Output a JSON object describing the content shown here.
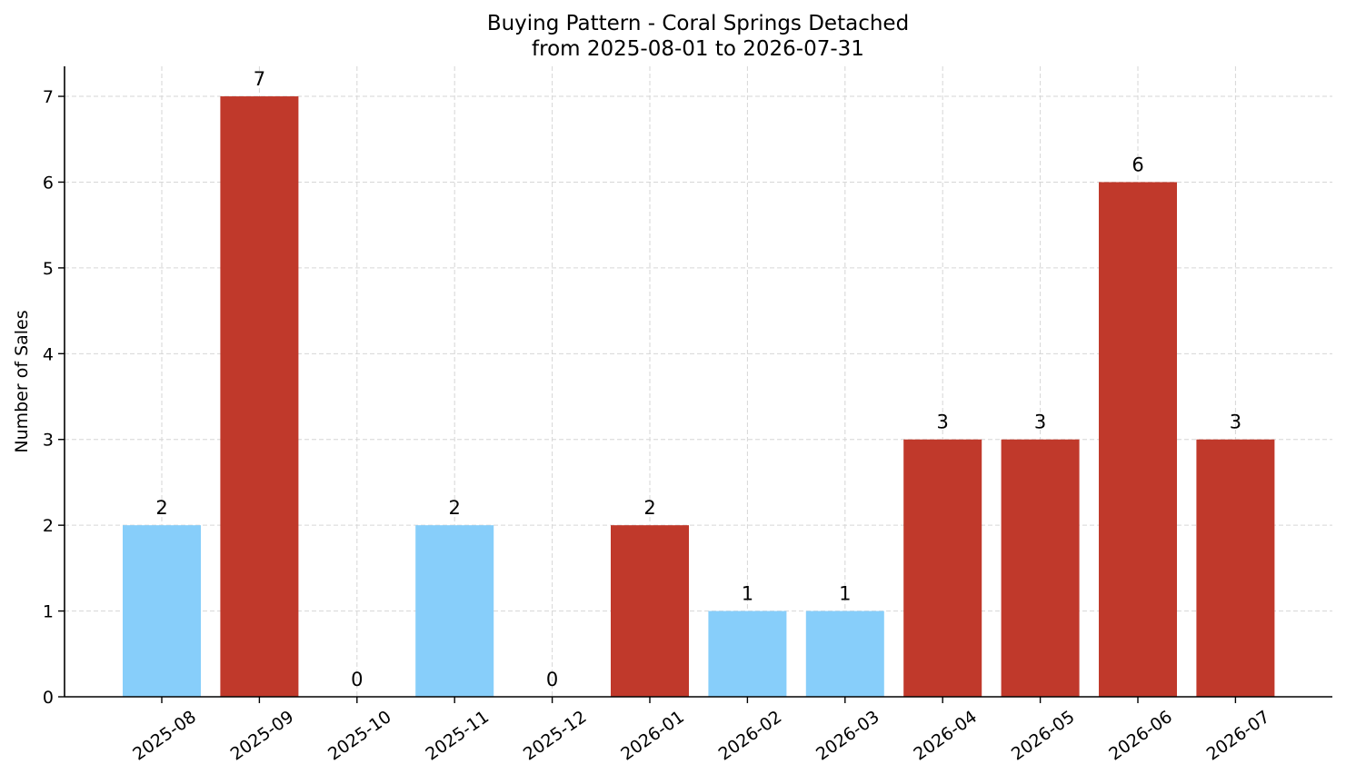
{
  "chart_data": {
    "type": "bar",
    "title": "Buying Pattern - Coral Springs Detached",
    "subtitle": "from 2025-08-01 to 2026-07-31",
    "xlabel": "",
    "ylabel": "Number of Sales",
    "categories": [
      "2025-08",
      "2025-09",
      "2025-10",
      "2025-11",
      "2025-12",
      "2026-01",
      "2026-02",
      "2026-03",
      "2026-04",
      "2026-05",
      "2026-06",
      "2026-07"
    ],
    "values": [
      2,
      7,
      0,
      2,
      0,
      2,
      1,
      1,
      3,
      3,
      6,
      3
    ],
    "bar_colors": [
      "#87cefa",
      "#c0392b",
      "#87cefa",
      "#87cefa",
      "#87cefa",
      "#c0392b",
      "#87cefa",
      "#87cefa",
      "#c0392b",
      "#c0392b",
      "#c0392b",
      "#c0392b"
    ],
    "ylim": [
      0,
      7.35
    ],
    "yticks": [
      0,
      1,
      2,
      3,
      4,
      5,
      6,
      7
    ],
    "grid": true,
    "legend": "none",
    "data_labels": true
  }
}
